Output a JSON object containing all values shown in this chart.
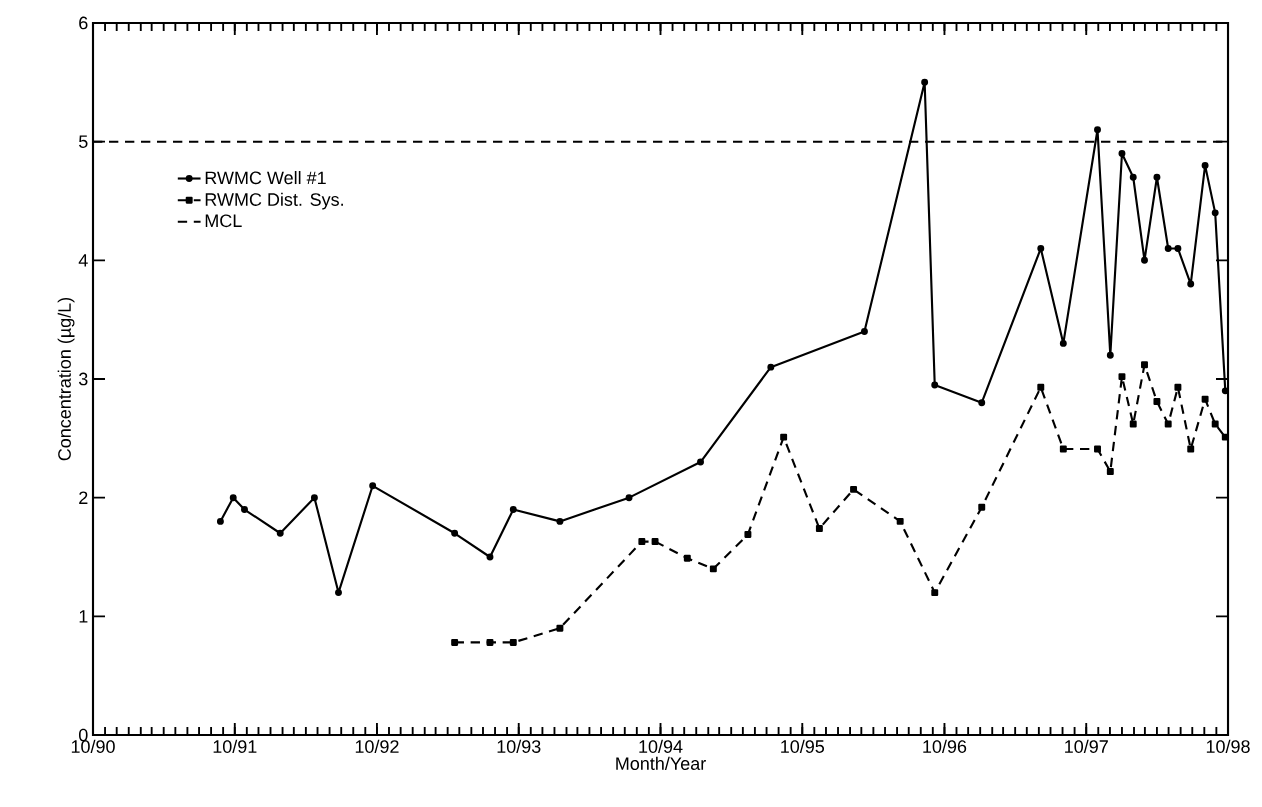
{
  "chart_data": {
    "type": "line",
    "xlabel": "Month/Year",
    "ylabel": "Concentration (µg/L)",
    "xlim": [
      "1990-10",
      "1998-10"
    ],
    "ylim": [
      0,
      6
    ],
    "xticks": [
      {
        "value": "1990-10",
        "label": "10/90"
      },
      {
        "value": "1991-10",
        "label": "10/91"
      },
      {
        "value": "1992-10",
        "label": "10/92"
      },
      {
        "value": "1993-10",
        "label": "10/93"
      },
      {
        "value": "1994-10",
        "label": "10/94"
      },
      {
        "value": "1995-10",
        "label": "10/95"
      },
      {
        "value": "1996-10",
        "label": "10/96"
      },
      {
        "value": "1997-10",
        "label": "10/97"
      },
      {
        "value": "1998-10",
        "label": "10/98"
      }
    ],
    "yticks": [
      0,
      1,
      2,
      3,
      4,
      5,
      6
    ],
    "legend": "top left",
    "series": [
      {
        "name": "RWMC Well #1",
        "color": "#000000",
        "marker": "circle",
        "line_style": "solid",
        "x": [
          "1991-08-25",
          "1991-09-27",
          "1991-10-26",
          "1992-01-26",
          "1992-04-23",
          "1992-06-24",
          "1992-09-20",
          "1993-04-19",
          "1993-07-19",
          "1993-09-17",
          "1994-01-15",
          "1994-07-12",
          "1995-01-12",
          "1995-07-12",
          "1996-03-09",
          "1996-08-11",
          "1996-09-06",
          "1997-01-05",
          "1997-06-06",
          "1997-08-03",
          "1997-10-30",
          "1997-12-02",
          "1998-01-01",
          "1998-01-30",
          "1998-02-28",
          "1998-04-01",
          "1998-04-30",
          "1998-05-25",
          "1998-06-27",
          "1998-08-03",
          "1998-08-29",
          "1998-09-24"
        ],
        "values": [
          1.8,
          2.0,
          1.9,
          1.7,
          2.0,
          1.2,
          2.1,
          1.7,
          1.5,
          1.9,
          1.8,
          2.0,
          2.3,
          3.1,
          3.4,
          5.5,
          2.95,
          2.8,
          4.1,
          3.3,
          5.1,
          3.2,
          4.9,
          4.7,
          4.0,
          4.7,
          4.1,
          4.1,
          3.8,
          4.8,
          4.4,
          2.9
        ]
      },
      {
        "name": "RWMC Dist. Sys.",
        "color": "#000000",
        "marker": "square",
        "line_style": "dashed",
        "x": [
          "1993-04-19",
          "1993-07-19",
          "1993-09-17",
          "1994-01-15",
          "1994-08-14",
          "1994-09-17",
          "1994-12-09",
          "1995-02-14",
          "1995-05-14",
          "1995-08-14",
          "1995-11-14",
          "1996-02-10",
          "1996-06-09",
          "1996-09-06",
          "1997-01-05",
          "1997-06-06",
          "1997-08-03",
          "1997-10-30",
          "1997-12-02",
          "1998-01-01",
          "1998-01-30",
          "1998-02-28",
          "1998-04-01",
          "1998-04-30",
          "1998-05-25",
          "1998-06-27",
          "1998-08-03",
          "1998-08-29",
          "1998-09-24"
        ],
        "values": [
          0.78,
          0.78,
          0.78,
          0.9,
          1.63,
          1.63,
          1.49,
          1.4,
          1.69,
          2.51,
          1.74,
          2.07,
          1.8,
          1.2,
          1.92,
          2.93,
          2.41,
          2.41,
          2.22,
          3.02,
          2.62,
          3.12,
          2.81,
          2.62,
          2.93,
          2.41,
          2.83,
          2.62,
          2.51
        ]
      }
    ],
    "ref_lines": [
      {
        "axis": "y",
        "value": 5,
        "label": "MCL",
        "color": "#000000",
        "line_style": "dashed"
      }
    ]
  }
}
